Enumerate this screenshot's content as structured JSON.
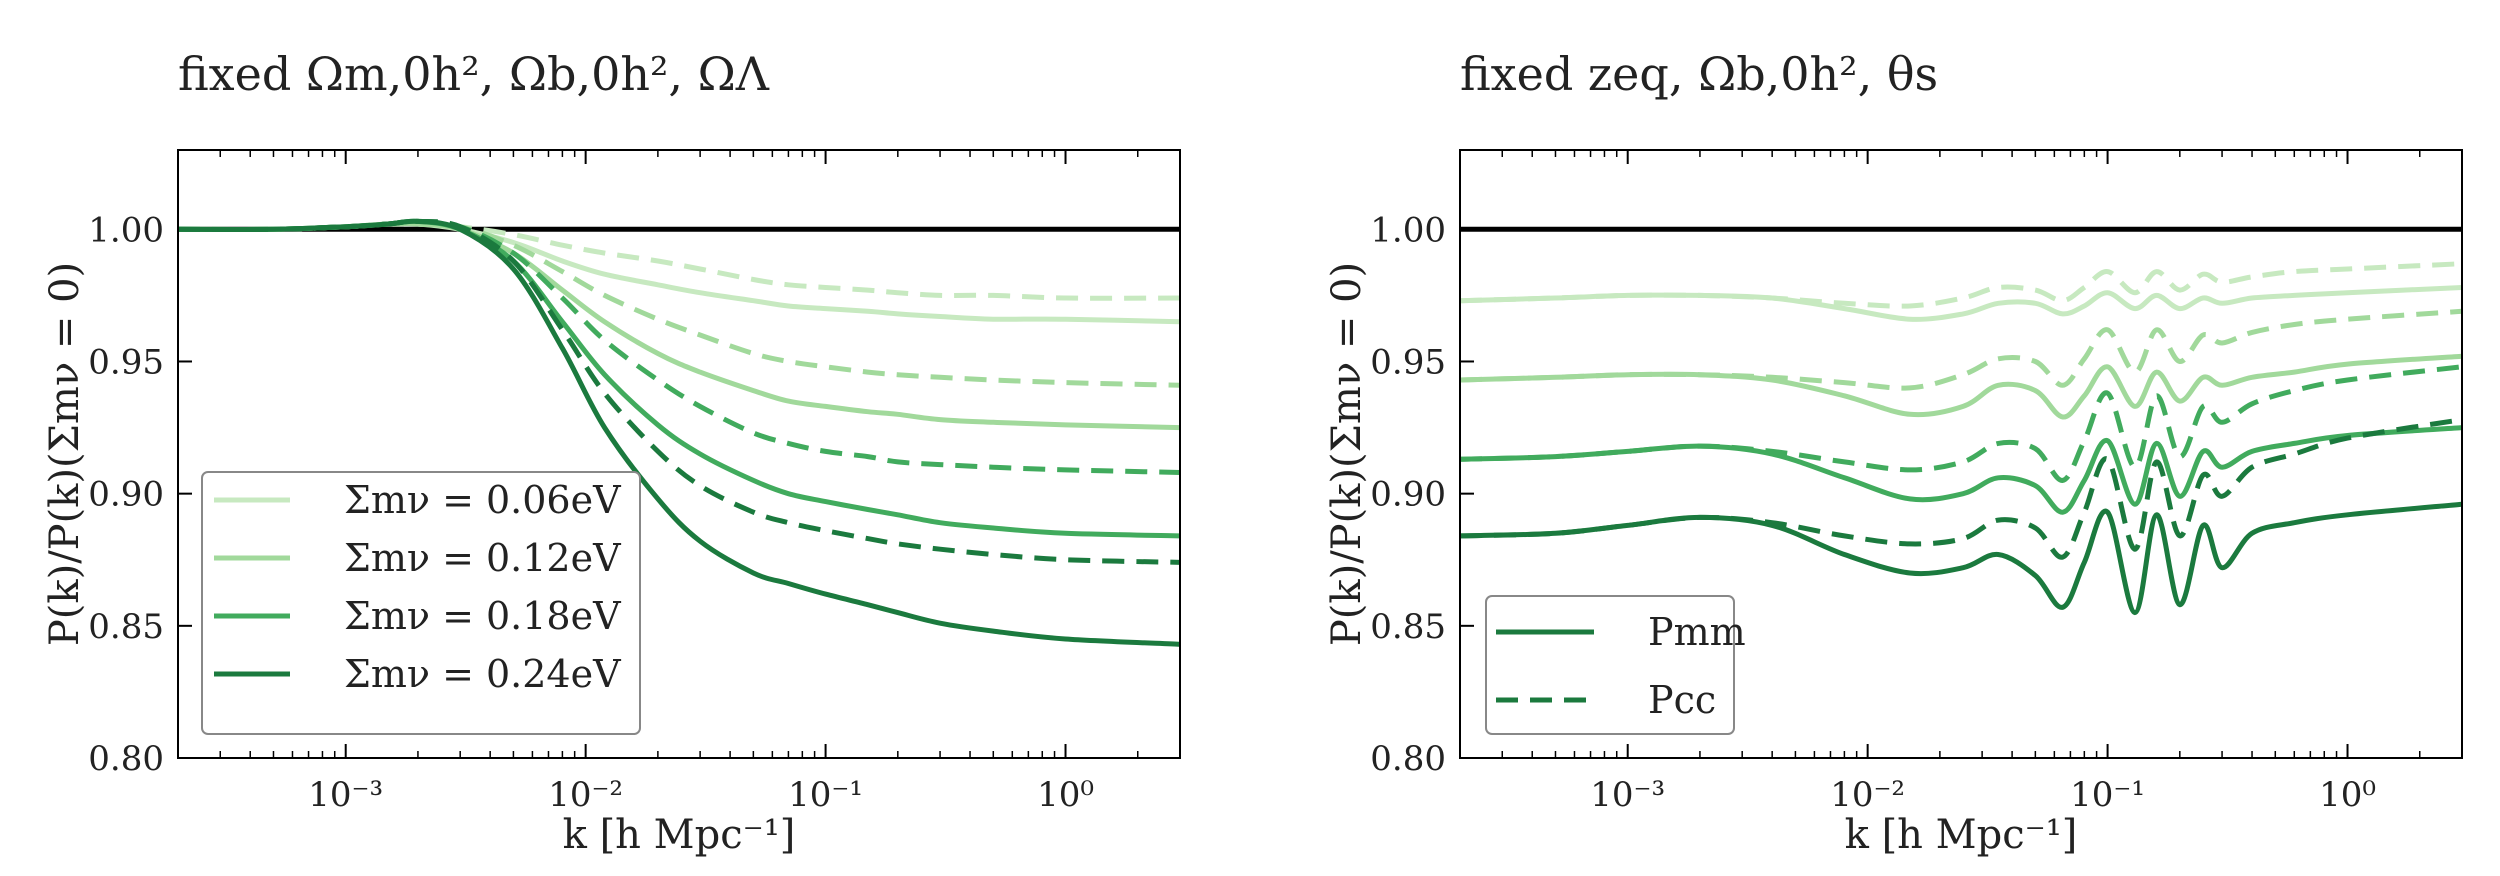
{
  "colors": {
    "mass_0_06": "#c7e9c0",
    "mass_0_12": "#a1d99b",
    "mass_0_18": "#41ab5d",
    "mass_0_24": "#1b7a3e",
    "reference": "#000000",
    "legend_frame": "#888888"
  },
  "chart_data": [
    {
      "type": "line",
      "title": "fixed Ωm,0h², Ωb,0h², ΩΛ",
      "xlabel": "k  [h Mpc⁻¹]",
      "ylabel": "P(k)/P(k)(Σmν = 0)",
      "xscale": "log",
      "xlim": [
        0.0002,
        3.0
      ],
      "ylim": [
        0.8,
        1.03
      ],
      "xticks": [
        {
          "value": 0.001,
          "label": "10⁻³"
        },
        {
          "value": 0.01,
          "label": "10⁻²"
        },
        {
          "value": 0.1,
          "label": "10⁻¹"
        },
        {
          "value": 1.0,
          "label": "10⁰"
        }
      ],
      "yticks": [
        {
          "value": 0.8,
          "label": "0.80"
        },
        {
          "value": 0.85,
          "label": "0.85"
        },
        {
          "value": 0.9,
          "label": "0.90"
        },
        {
          "value": 0.95,
          "label": "0.95"
        },
        {
          "value": 1.0,
          "label": "1.00"
        }
      ],
      "reference_line": 1.0,
      "legend": {
        "placement": "lower-left",
        "entries": [
          {
            "label": "Σmν = 0.06eV",
            "color_key": "mass_0_06",
            "style": "solid"
          },
          {
            "label": "Σmν = 0.12eV",
            "color_key": "mass_0_12",
            "style": "solid"
          },
          {
            "label": "Σmν = 0.18eV",
            "color_key": "mass_0_18",
            "style": "solid"
          },
          {
            "label": "Σmν = 0.24eV",
            "color_key": "mass_0_24",
            "style": "solid"
          }
        ]
      },
      "series": [
        {
          "name": "Σmν=0.06eV Pmm",
          "color_key": "mass_0_06",
          "style": "solid",
          "x": [
            0.0002,
            0.0005,
            0.001,
            0.0015,
            0.002,
            0.003,
            0.005,
            0.008,
            0.012,
            0.02,
            0.03,
            0.05,
            0.07,
            0.1,
            0.15,
            0.2,
            0.3,
            0.5,
            1.0,
            3.0
          ],
          "y": [
            1.0,
            1.0,
            1.001,
            1.002,
            1.002,
            1.0,
            0.995,
            0.988,
            0.983,
            0.979,
            0.976,
            0.973,
            0.971,
            0.97,
            0.969,
            0.968,
            0.967,
            0.966,
            0.966,
            0.965
          ]
        },
        {
          "name": "Σmν=0.06eV Pcc",
          "color_key": "mass_0_06",
          "style": "dashed",
          "x": [
            0.0002,
            0.0005,
            0.001,
            0.0015,
            0.002,
            0.003,
            0.005,
            0.008,
            0.012,
            0.02,
            0.03,
            0.05,
            0.07,
            0.1,
            0.15,
            0.2,
            0.3,
            0.5,
            1.0,
            3.0
          ],
          "y": [
            1.0,
            1.0,
            1.001,
            1.002,
            1.002,
            1.001,
            0.998,
            0.994,
            0.991,
            0.988,
            0.985,
            0.981,
            0.979,
            0.978,
            0.977,
            0.976,
            0.975,
            0.975,
            0.974,
            0.974
          ]
        },
        {
          "name": "Σmν=0.12eV Pmm",
          "color_key": "mass_0_12",
          "style": "solid",
          "x": [
            0.0002,
            0.0005,
            0.001,
            0.0015,
            0.002,
            0.003,
            0.005,
            0.008,
            0.012,
            0.02,
            0.03,
            0.05,
            0.07,
            0.1,
            0.15,
            0.2,
            0.3,
            0.5,
            1.0,
            3.0
          ],
          "y": [
            1.0,
            1.0,
            1.001,
            1.002,
            1.002,
            1.0,
            0.991,
            0.977,
            0.965,
            0.953,
            0.946,
            0.939,
            0.935,
            0.933,
            0.931,
            0.93,
            0.928,
            0.927,
            0.926,
            0.925
          ]
        },
        {
          "name": "Σmν=0.12eV Pcc",
          "color_key": "mass_0_12",
          "style": "dashed",
          "x": [
            0.0002,
            0.0005,
            0.001,
            0.0015,
            0.002,
            0.003,
            0.005,
            0.008,
            0.012,
            0.02,
            0.03,
            0.05,
            0.07,
            0.1,
            0.15,
            0.2,
            0.3,
            0.5,
            1.0,
            3.0
          ],
          "y": [
            1.0,
            1.0,
            1.001,
            1.002,
            1.002,
            1.001,
            0.994,
            0.984,
            0.975,
            0.966,
            0.96,
            0.953,
            0.95,
            0.948,
            0.946,
            0.945,
            0.944,
            0.943,
            0.942,
            0.941
          ]
        },
        {
          "name": "Σmν=0.18eV Pmm",
          "color_key": "mass_0_18",
          "style": "solid",
          "x": [
            0.0002,
            0.0005,
            0.001,
            0.0015,
            0.002,
            0.003,
            0.005,
            0.008,
            0.012,
            0.02,
            0.03,
            0.05,
            0.07,
            0.1,
            0.15,
            0.2,
            0.3,
            0.5,
            1.0,
            3.0
          ],
          "y": [
            1.0,
            1.0,
            1.001,
            1.002,
            1.003,
            1.0,
            0.988,
            0.965,
            0.945,
            0.926,
            0.915,
            0.905,
            0.9,
            0.897,
            0.894,
            0.892,
            0.889,
            0.887,
            0.885,
            0.884
          ]
        },
        {
          "name": "Σmν=0.18eV Pcc",
          "color_key": "mass_0_18",
          "style": "dashed",
          "x": [
            0.0002,
            0.0005,
            0.001,
            0.0015,
            0.002,
            0.003,
            0.005,
            0.008,
            0.012,
            0.02,
            0.03,
            0.05,
            0.07,
            0.1,
            0.15,
            0.2,
            0.3,
            0.5,
            1.0,
            3.0
          ],
          "y": [
            1.0,
            1.0,
            1.001,
            1.002,
            1.003,
            1.001,
            0.991,
            0.974,
            0.958,
            0.943,
            0.933,
            0.923,
            0.919,
            0.916,
            0.914,
            0.912,
            0.911,
            0.91,
            0.909,
            0.908
          ]
        },
        {
          "name": "Σmν=0.24eV Pmm",
          "color_key": "mass_0_24",
          "style": "solid",
          "x": [
            0.0002,
            0.0005,
            0.001,
            0.0015,
            0.002,
            0.003,
            0.005,
            0.008,
            0.012,
            0.02,
            0.03,
            0.05,
            0.07,
            0.1,
            0.15,
            0.2,
            0.3,
            0.5,
            1.0,
            3.0
          ],
          "y": [
            1.0,
            1.0,
            1.001,
            1.002,
            1.003,
            1.0,
            0.985,
            0.955,
            0.925,
            0.898,
            0.882,
            0.87,
            0.866,
            0.862,
            0.858,
            0.855,
            0.851,
            0.848,
            0.845,
            0.843
          ]
        },
        {
          "name": "Σmν=0.24eV Pcc",
          "color_key": "mass_0_24",
          "style": "dashed",
          "x": [
            0.0002,
            0.0005,
            0.001,
            0.0015,
            0.002,
            0.003,
            0.005,
            0.008,
            0.012,
            0.02,
            0.03,
            0.05,
            0.07,
            0.1,
            0.15,
            0.2,
            0.3,
            0.5,
            1.0,
            3.0
          ],
          "y": [
            1.0,
            1.0,
            1.001,
            1.002,
            1.003,
            1.001,
            0.988,
            0.962,
            0.938,
            0.916,
            0.903,
            0.893,
            0.889,
            0.886,
            0.883,
            0.881,
            0.879,
            0.877,
            0.875,
            0.874
          ]
        }
      ]
    },
    {
      "type": "line",
      "title": "fixed zeq, Ωb,0h², θs",
      "xlabel": "k  [h Mpc⁻¹]",
      "ylabel": "P(k)/P(k)(Σmν = 0)",
      "xscale": "log",
      "xlim": [
        0.0002,
        3.0
      ],
      "ylim": [
        0.8,
        1.03
      ],
      "xticks": [
        {
          "value": 0.001,
          "label": "10⁻³"
        },
        {
          "value": 0.01,
          "label": "10⁻²"
        },
        {
          "value": 0.1,
          "label": "10⁻¹"
        },
        {
          "value": 1.0,
          "label": "10⁰"
        }
      ],
      "yticks": [
        {
          "value": 0.8,
          "label": "0.80"
        },
        {
          "value": 0.85,
          "label": "0.85"
        },
        {
          "value": 0.9,
          "label": "0.90"
        },
        {
          "value": 0.95,
          "label": "0.95"
        },
        {
          "value": 1.0,
          "label": "1.00"
        }
      ],
      "reference_line": 1.0,
      "legend": {
        "placement": "lower-left",
        "entries": [
          {
            "label": "Pmm",
            "color_key": "mass_0_24",
            "style": "solid"
          },
          {
            "label": "Pcc",
            "color_key": "mass_0_24",
            "style": "dashed"
          }
        ]
      },
      "series": [
        {
          "name": "Σmν=0.06eV Pmm",
          "color_key": "mass_0_06",
          "style": "solid",
          "x": [
            0.0002,
            0.0005,
            0.001,
            0.002,
            0.004,
            0.008,
            0.015,
            0.025,
            0.035,
            0.05,
            0.065,
            0.08,
            0.1,
            0.13,
            0.16,
            0.2,
            0.25,
            0.3,
            0.4,
            0.6,
            1.0,
            3.0
          ],
          "y": [
            0.973,
            0.974,
            0.975,
            0.975,
            0.974,
            0.97,
            0.966,
            0.968,
            0.972,
            0.972,
            0.968,
            0.971,
            0.976,
            0.97,
            0.975,
            0.97,
            0.974,
            0.972,
            0.974,
            0.975,
            0.976,
            0.978
          ]
        },
        {
          "name": "Σmν=0.06eV Pcc",
          "color_key": "mass_0_06",
          "style": "dashed",
          "x": [
            0.0002,
            0.0005,
            0.001,
            0.002,
            0.004,
            0.008,
            0.015,
            0.025,
            0.035,
            0.05,
            0.065,
            0.08,
            0.1,
            0.13,
            0.16,
            0.2,
            0.25,
            0.3,
            0.4,
            0.6,
            1.0,
            3.0
          ],
          "y": [
            0.973,
            0.974,
            0.975,
            0.975,
            0.974,
            0.972,
            0.971,
            0.974,
            0.978,
            0.977,
            0.973,
            0.978,
            0.984,
            0.976,
            0.984,
            0.977,
            0.983,
            0.98,
            0.982,
            0.984,
            0.985,
            0.987
          ]
        },
        {
          "name": "Σmν=0.12eV Pmm",
          "color_key": "mass_0_12",
          "style": "solid",
          "x": [
            0.0002,
            0.0005,
            0.001,
            0.002,
            0.004,
            0.008,
            0.015,
            0.025,
            0.035,
            0.05,
            0.065,
            0.08,
            0.1,
            0.13,
            0.16,
            0.2,
            0.25,
            0.3,
            0.4,
            0.6,
            1.0,
            3.0
          ],
          "y": [
            0.943,
            0.944,
            0.945,
            0.945,
            0.943,
            0.937,
            0.93,
            0.933,
            0.941,
            0.939,
            0.929,
            0.937,
            0.948,
            0.933,
            0.946,
            0.935,
            0.944,
            0.941,
            0.944,
            0.946,
            0.949,
            0.952
          ]
        },
        {
          "name": "Σmν=0.12eV Pcc",
          "color_key": "mass_0_12",
          "style": "dashed",
          "x": [
            0.0002,
            0.0005,
            0.001,
            0.002,
            0.004,
            0.008,
            0.015,
            0.025,
            0.035,
            0.05,
            0.065,
            0.08,
            0.1,
            0.13,
            0.16,
            0.2,
            0.25,
            0.3,
            0.4,
            0.6,
            1.0,
            3.0
          ],
          "y": [
            0.943,
            0.944,
            0.945,
            0.945,
            0.944,
            0.942,
            0.94,
            0.945,
            0.951,
            0.95,
            0.941,
            0.951,
            0.962,
            0.946,
            0.962,
            0.95,
            0.96,
            0.957,
            0.961,
            0.964,
            0.966,
            0.969
          ]
        },
        {
          "name": "Σmν=0.18eV Pmm",
          "color_key": "mass_0_18",
          "style": "solid",
          "x": [
            0.0002,
            0.0005,
            0.001,
            0.002,
            0.004,
            0.008,
            0.015,
            0.025,
            0.035,
            0.05,
            0.065,
            0.08,
            0.1,
            0.13,
            0.16,
            0.2,
            0.25,
            0.3,
            0.4,
            0.6,
            1.0,
            3.0
          ],
          "y": [
            0.913,
            0.914,
            0.916,
            0.918,
            0.915,
            0.906,
            0.898,
            0.9,
            0.906,
            0.903,
            0.893,
            0.905,
            0.92,
            0.896,
            0.919,
            0.899,
            0.916,
            0.91,
            0.916,
            0.919,
            0.922,
            0.925
          ]
        },
        {
          "name": "Σmν=0.18eV Pcc",
          "color_key": "mass_0_18",
          "style": "dashed",
          "x": [
            0.0002,
            0.0005,
            0.001,
            0.002,
            0.004,
            0.008,
            0.015,
            0.025,
            0.035,
            0.05,
            0.065,
            0.08,
            0.1,
            0.13,
            0.16,
            0.2,
            0.25,
            0.3,
            0.4,
            0.6,
            1.0,
            3.0
          ],
          "y": [
            0.913,
            0.914,
            0.916,
            0.918,
            0.916,
            0.912,
            0.909,
            0.912,
            0.919,
            0.917,
            0.905,
            0.92,
            0.938,
            0.91,
            0.937,
            0.914,
            0.933,
            0.927,
            0.934,
            0.939,
            0.943,
            0.948
          ]
        },
        {
          "name": "Σmν=0.24eV Pmm",
          "color_key": "mass_0_24",
          "style": "solid",
          "x": [
            0.0002,
            0.0005,
            0.001,
            0.002,
            0.004,
            0.008,
            0.015,
            0.025,
            0.035,
            0.05,
            0.065,
            0.08,
            0.1,
            0.13,
            0.16,
            0.2,
            0.25,
            0.3,
            0.4,
            0.6,
            1.0,
            3.0
          ],
          "y": [
            0.884,
            0.885,
            0.888,
            0.891,
            0.888,
            0.877,
            0.87,
            0.872,
            0.877,
            0.869,
            0.857,
            0.874,
            0.893,
            0.855,
            0.892,
            0.858,
            0.888,
            0.872,
            0.885,
            0.889,
            0.892,
            0.896
          ]
        },
        {
          "name": "Σmν=0.24eV Pcc",
          "color_key": "mass_0_24",
          "style": "dashed",
          "x": [
            0.0002,
            0.0005,
            0.001,
            0.002,
            0.004,
            0.008,
            0.015,
            0.025,
            0.035,
            0.05,
            0.065,
            0.08,
            0.1,
            0.13,
            0.16,
            0.2,
            0.25,
            0.3,
            0.4,
            0.6,
            1.0,
            3.0
          ],
          "y": [
            0.884,
            0.885,
            0.888,
            0.891,
            0.889,
            0.884,
            0.881,
            0.883,
            0.89,
            0.887,
            0.876,
            0.893,
            0.913,
            0.879,
            0.912,
            0.884,
            0.907,
            0.899,
            0.91,
            0.915,
            0.921,
            0.928
          ]
        }
      ]
    }
  ]
}
